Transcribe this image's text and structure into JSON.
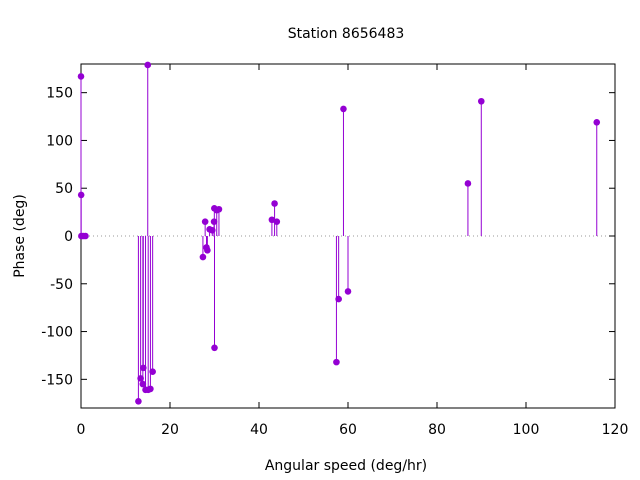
{
  "chart_data": {
    "type": "scatter",
    "style": "impulses-with-points",
    "title": "Station 8656483",
    "xlabel": "Angular speed (deg/hr)",
    "ylabel": "Phase (deg)",
    "xlim": [
      0,
      120
    ],
    "ylim": [
      -180,
      180
    ],
    "xticks": [
      0,
      20,
      40,
      60,
      80,
      100,
      120
    ],
    "yticks": [
      -150,
      -100,
      -50,
      0,
      50,
      100,
      150
    ],
    "zero_line": true,
    "grid": false,
    "series": [
      {
        "color": "#9400d3",
        "points": [
          {
            "x": 0.0,
            "y": 167
          },
          {
            "x": 0.04,
            "y": 43
          },
          {
            "x": 0.08,
            "y": 0
          },
          {
            "x": 0.5,
            "y": 0
          },
          {
            "x": 1.0,
            "y": 0
          },
          {
            "x": 12.9,
            "y": -173
          },
          {
            "x": 13.4,
            "y": -149
          },
          {
            "x": 13.9,
            "y": -155
          },
          {
            "x": 14.5,
            "y": -161
          },
          {
            "x": 14.0,
            "y": -138
          },
          {
            "x": 15.0,
            "y": 179
          },
          {
            "x": 15.1,
            "y": -161
          },
          {
            "x": 15.6,
            "y": -160
          },
          {
            "x": 16.1,
            "y": -142
          },
          {
            "x": 27.4,
            "y": -22
          },
          {
            "x": 27.9,
            "y": 15
          },
          {
            "x": 28.2,
            "y": -12
          },
          {
            "x": 28.4,
            "y": -15
          },
          {
            "x": 28.9,
            "y": 7
          },
          {
            "x": 29.5,
            "y": 6
          },
          {
            "x": 29.9,
            "y": 15
          },
          {
            "x": 29.96,
            "y": 29
          },
          {
            "x": 30.0,
            "y": -117
          },
          {
            "x": 30.5,
            "y": 27
          },
          {
            "x": 31.0,
            "y": 28
          },
          {
            "x": 42.9,
            "y": 17
          },
          {
            "x": 43.5,
            "y": 34
          },
          {
            "x": 44.0,
            "y": 15
          },
          {
            "x": 57.4,
            "y": -132
          },
          {
            "x": 57.9,
            "y": -66
          },
          {
            "x": 58.98,
            "y": 133
          },
          {
            "x": 60.0,
            "y": -58
          },
          {
            "x": 86.95,
            "y": 55
          },
          {
            "x": 89.95,
            "y": 141
          },
          {
            "x": 115.9,
            "y": 119
          }
        ]
      }
    ]
  }
}
